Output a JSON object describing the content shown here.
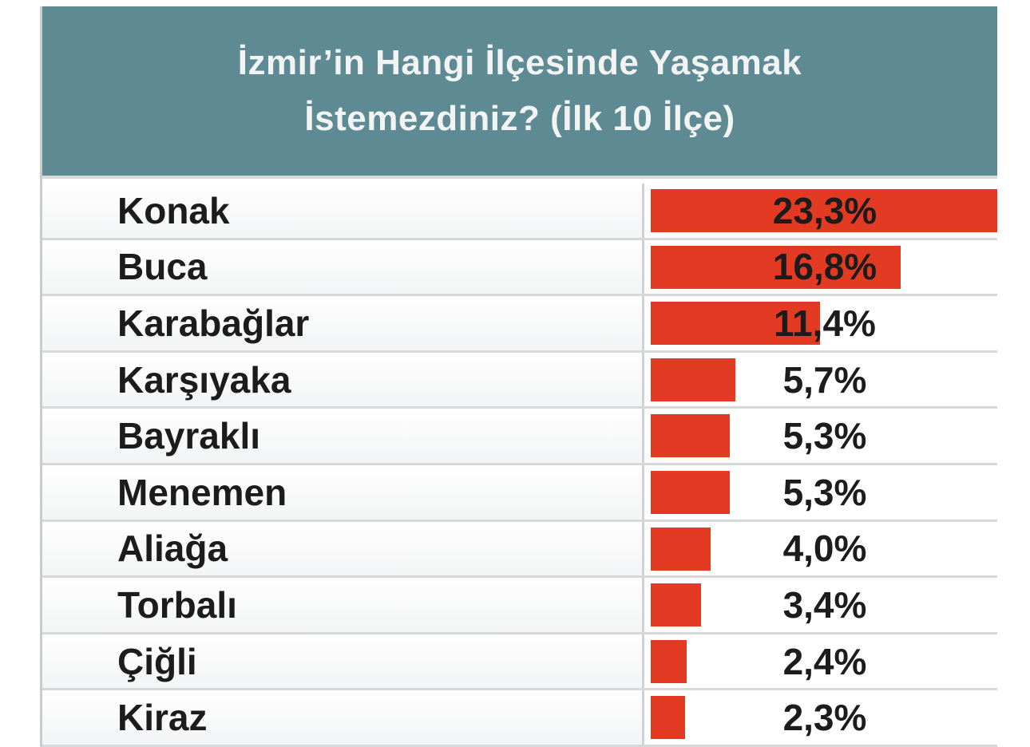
{
  "chart_data": {
    "type": "bar",
    "orientation": "horizontal",
    "title": "İzmir’in Hangi İlçesinde Yaşamak İstemezdiniz? (İlk 10 İlçe)",
    "title_lines": [
      "İzmir’in Hangi İlçesinde Yaşamak",
      "İstemezdiniz? (İlk 10 İlçe)"
    ],
    "categories": [
      "Konak",
      "Buca",
      "Karabağlar",
      "Karşıyaka",
      "Bayraklı",
      "Menemen",
      "Aliağa",
      "Torbalı",
      "Çiğli",
      "Kiraz"
    ],
    "values": [
      23.3,
      16.8,
      11.4,
      5.7,
      5.3,
      5.3,
      4.0,
      3.4,
      2.4,
      2.3
    ],
    "value_labels": [
      "23,3%",
      "16,8%",
      "11,4%",
      "5,7%",
      "5,3%",
      "5,3%",
      "4,0%",
      "3,4%",
      "2,4%",
      "2,3%"
    ],
    "xlim": [
      0,
      23.3
    ],
    "bar_color": "#e33a24",
    "header_color": "#5e8a93"
  }
}
